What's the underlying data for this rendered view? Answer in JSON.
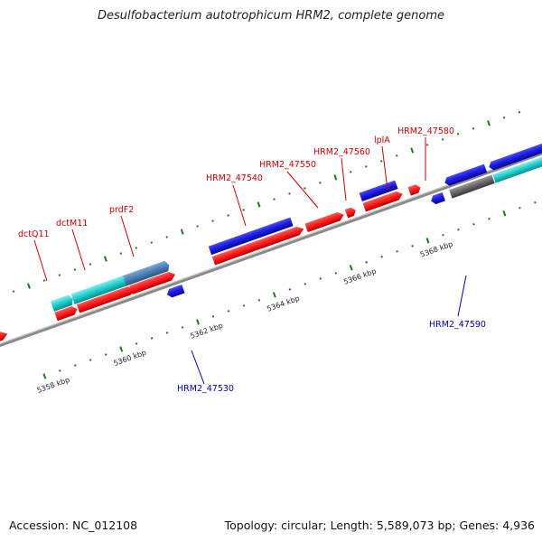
{
  "title": "Desulfobacterium autotrophicum HRM2, complete genome",
  "footer": {
    "accession": "Accession: NC_012108",
    "summary": "Topology: circular; Length: 5,589,073 bp; Genes: 4,936"
  },
  "colors": {
    "forward_gene": "#ff2020",
    "reverse_gene": "#1a1adf",
    "operon_cyan": "#20cfcf",
    "operon_steel": "#4a7fb5",
    "gray_feature": "#666666",
    "backbone": "#888888",
    "tick": "#1a7a1a",
    "label_forward": "#cc0000",
    "label_reverse": "#0000aa"
  },
  "scale": {
    "labels": [
      "5358 kbp",
      "5360 kbp",
      "5362 kbp",
      "5364 kbp",
      "5366 kbp",
      "5368 kbp"
    ]
  },
  "gene_labels": {
    "top": [
      "dctQ11",
      "dctM11",
      "prdF2",
      "HRM2_47540",
      "HRM2_47550",
      "HRM2_47560",
      "lplA",
      "HRM2_47580"
    ],
    "bottom": [
      "HRM2_47530",
      "HRM2_47590"
    ]
  }
}
